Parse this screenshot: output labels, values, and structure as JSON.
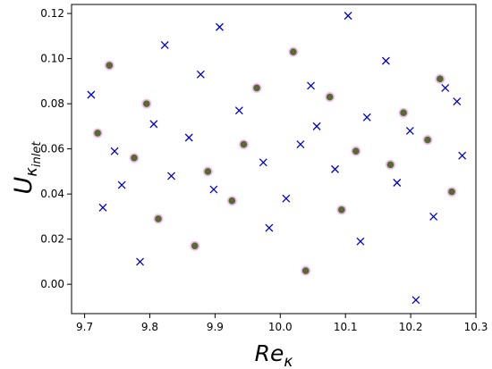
{
  "chart_data": {
    "type": "scatter",
    "title": "",
    "xlabel": "Re",
    "xlabel_sub": "κ",
    "ylabel": "U",
    "ylabel_sub": "κ",
    "ylabel_subsub": "inlet",
    "xlim": [
      9.68,
      10.3
    ],
    "ylim": [
      -0.013,
      0.124
    ],
    "xticks": [
      "9.7",
      "9.8",
      "9.9",
      "10.0",
      "10.1",
      "10.2",
      "10.3"
    ],
    "yticks": [
      "0.00",
      "0.02",
      "0.04",
      "0.06",
      "0.08",
      "0.10",
      "0.12"
    ],
    "grid": false,
    "series": [
      {
        "marker": "x",
        "color": "#0000cc",
        "points": [
          [
            9.71,
            0.084
          ],
          [
            9.728,
            0.034
          ],
          [
            9.746,
            0.059
          ],
          [
            9.757,
            0.044
          ],
          [
            9.785,
            0.01
          ],
          [
            9.806,
            0.071
          ],
          [
            9.823,
            0.106
          ],
          [
            9.833,
            0.048
          ],
          [
            9.86,
            0.065
          ],
          [
            9.878,
            0.093
          ],
          [
            9.898,
            0.042
          ],
          [
            9.907,
            0.114
          ],
          [
            9.937,
            0.077
          ],
          [
            9.974,
            0.054
          ],
          [
            9.983,
            0.025
          ],
          [
            10.009,
            0.038
          ],
          [
            10.031,
            0.062
          ],
          [
            10.047,
            0.088
          ],
          [
            10.056,
            0.07
          ],
          [
            10.084,
            0.051
          ],
          [
            10.104,
            0.119
          ],
          [
            10.123,
            0.019
          ],
          [
            10.133,
            0.074
          ],
          [
            10.162,
            0.099
          ],
          [
            10.179,
            0.045
          ],
          [
            10.199,
            0.068
          ],
          [
            10.208,
            -0.007
          ],
          [
            10.235,
            0.03
          ],
          [
            10.253,
            0.087
          ],
          [
            10.271,
            0.081
          ],
          [
            10.279,
            0.057
          ]
        ]
      },
      {
        "marker": "circle",
        "color": "#556b2f",
        "halo": "#d63bd6",
        "points": [
          [
            9.72,
            0.067
          ],
          [
            9.738,
            0.097
          ],
          [
            9.776,
            0.056
          ],
          [
            9.795,
            0.08
          ],
          [
            9.813,
            0.029
          ],
          [
            9.869,
            0.017
          ],
          [
            9.889,
            0.05
          ],
          [
            9.926,
            0.037
          ],
          [
            9.944,
            0.062
          ],
          [
            9.964,
            0.087
          ],
          [
            10.02,
            0.103
          ],
          [
            10.039,
            0.006
          ],
          [
            10.076,
            0.083
          ],
          [
            10.094,
            0.033
          ],
          [
            10.116,
            0.059
          ],
          [
            10.169,
            0.053
          ],
          [
            10.189,
            0.076
          ],
          [
            10.226,
            0.064
          ],
          [
            10.245,
            0.091
          ],
          [
            10.263,
            0.041
          ]
        ]
      }
    ]
  }
}
